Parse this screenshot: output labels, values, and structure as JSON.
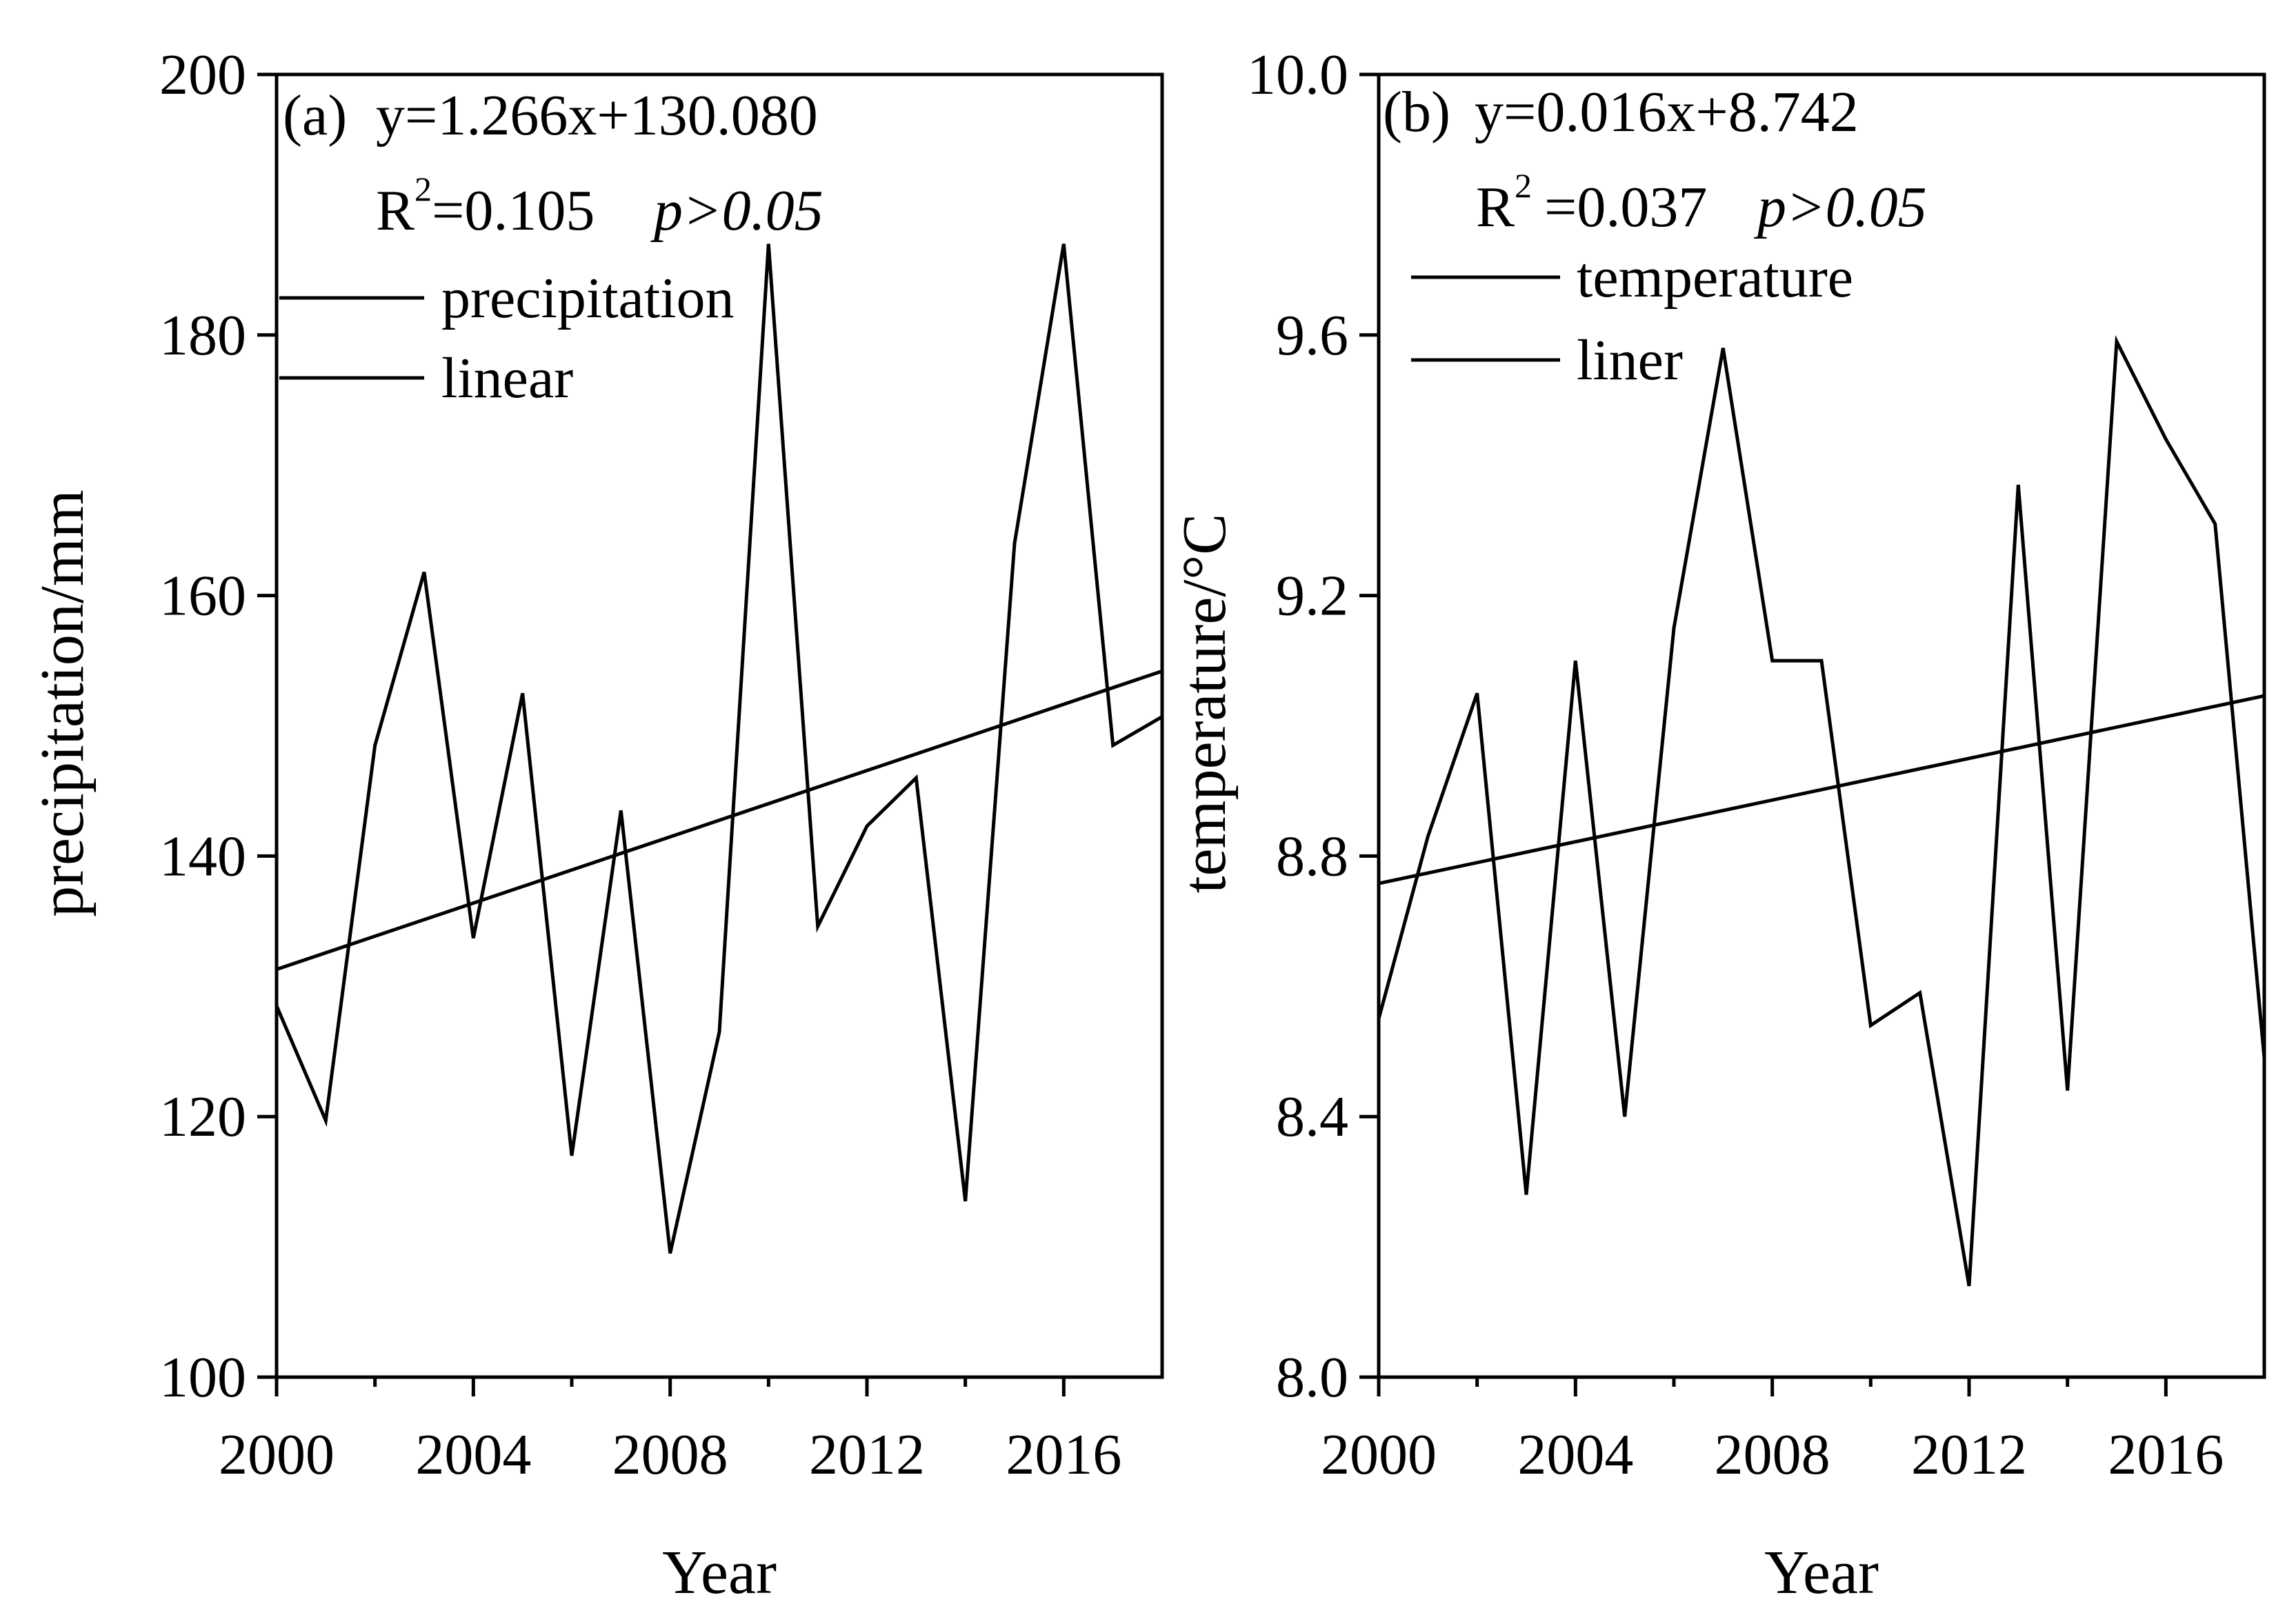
{
  "chart_data": [
    {
      "type": "line",
      "panel_label": "(a)",
      "equation": "y=1.266x+130.080",
      "r2_label": "R",
      "r2_sup": "2",
      "r2_value": "=0.105",
      "p_text": "p>0.05",
      "xlabel": "Year",
      "ylabel": "precipitation/mm",
      "xlim": [
        2000,
        2018
      ],
      "ylim": [
        100,
        200
      ],
      "xticks": [
        2000,
        2004,
        2008,
        2012,
        2016
      ],
      "xtick_labels": [
        "2000",
        "2004",
        "2008",
        "2012",
        "2016"
      ],
      "yticks": [
        100,
        120,
        140,
        160,
        180,
        200
      ],
      "ytick_labels": [
        "100",
        "120",
        "140",
        "160",
        "180",
        "200"
      ],
      "legend": [
        "precipitation",
        "linear"
      ],
      "series": [
        {
          "name": "precipitation",
          "x": [
            2000,
            2001,
            2002,
            2003,
            2004,
            2005,
            2006,
            2007,
            2008,
            2009,
            2010,
            2011,
            2012,
            2013,
            2014,
            2015,
            2016,
            2017,
            2018
          ],
          "y": [
            128.5,
            119.7,
            148.5,
            161.8,
            133.7,
            152.5,
            117.0,
            143.5,
            109.5,
            126.5,
            187.0,
            134.6,
            142.3,
            146.0,
            113.5,
            164.0,
            187.0,
            148.5,
            150.7
          ]
        },
        {
          "name": "linear",
          "x": [
            2000,
            2018
          ],
          "y": [
            131.3,
            154.2
          ]
        }
      ]
    },
    {
      "type": "line",
      "panel_label": "(b)",
      "equation": "y=0.016x+8.742",
      "r2_label": "R",
      "r2_sup": "2",
      "r2_value": "=0.037",
      "p_text": "p>0.05",
      "xlabel": "Year",
      "ylabel": "temperature/°C",
      "xlim": [
        2000,
        2018
      ],
      "ylim": [
        8.0,
        10.0
      ],
      "xticks": [
        2000,
        2004,
        2008,
        2012,
        2016
      ],
      "xtick_labels": [
        "2000",
        "2004",
        "2008",
        "2012",
        "2016"
      ],
      "yticks": [
        8.0,
        8.4,
        8.8,
        9.2,
        9.6,
        10.0
      ],
      "ytick_labels": [
        "8.0",
        "8.4",
        "8.8",
        "9.2",
        "9.6",
        "10.0"
      ],
      "legend": [
        "temperature",
        "liner"
      ],
      "series": [
        {
          "name": "temperature",
          "x": [
            2000,
            2001,
            2002,
            2003,
            2004,
            2005,
            2006,
            2007,
            2008,
            2009,
            2010,
            2011,
            2012,
            2013,
            2014,
            2015,
            2016,
            2017,
            2018
          ],
          "y": [
            8.55,
            8.83,
            9.05,
            8.28,
            9.1,
            8.4,
            9.15,
            9.58,
            9.1,
            9.1,
            8.54,
            8.59,
            8.14,
            9.37,
            8.44,
            9.59,
            9.44,
            9.31,
            8.49
          ]
        },
        {
          "name": "liner",
          "x": [
            2000,
            2018
          ],
          "y": [
            8.758,
            9.046
          ]
        }
      ]
    }
  ]
}
